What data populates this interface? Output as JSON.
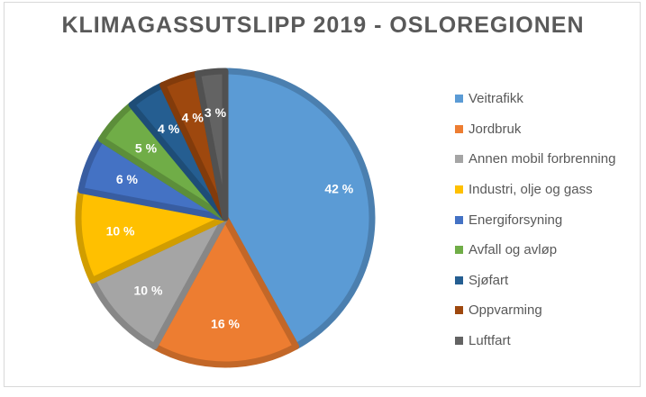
{
  "chart_data": {
    "type": "pie",
    "title": "KLIMAGASSUTSLIPP 2019 - OSLOREGIONEN",
    "legend_position": "right",
    "slices": [
      {
        "name": "Veitrafikk",
        "value": 42,
        "label": "42 %",
        "color": "#5B9BD5"
      },
      {
        "name": "Jordbruk",
        "value": 16,
        "label": "16 %",
        "color": "#ED7D31"
      },
      {
        "name": "Annen mobil forbrenning",
        "value": 10,
        "label": "10 %",
        "color": "#A5A5A5"
      },
      {
        "name": "Industri, olje og gass",
        "value": 10,
        "label": "10 %",
        "color": "#FFC000"
      },
      {
        "name": "Energiforsyning",
        "value": 6,
        "label": "6 %",
        "color": "#4472C4"
      },
      {
        "name": "Avfall og avløp",
        "value": 5,
        "label": "5 %",
        "color": "#70AD47"
      },
      {
        "name": "Sjøfart",
        "value": 4,
        "label": "4 %",
        "color": "#255E91"
      },
      {
        "name": "Oppvarming",
        "value": 4,
        "label": "4 %",
        "color": "#9E480E"
      },
      {
        "name": "Luftfart",
        "value": 3,
        "label": "3 %",
        "color": "#636363"
      }
    ]
  }
}
